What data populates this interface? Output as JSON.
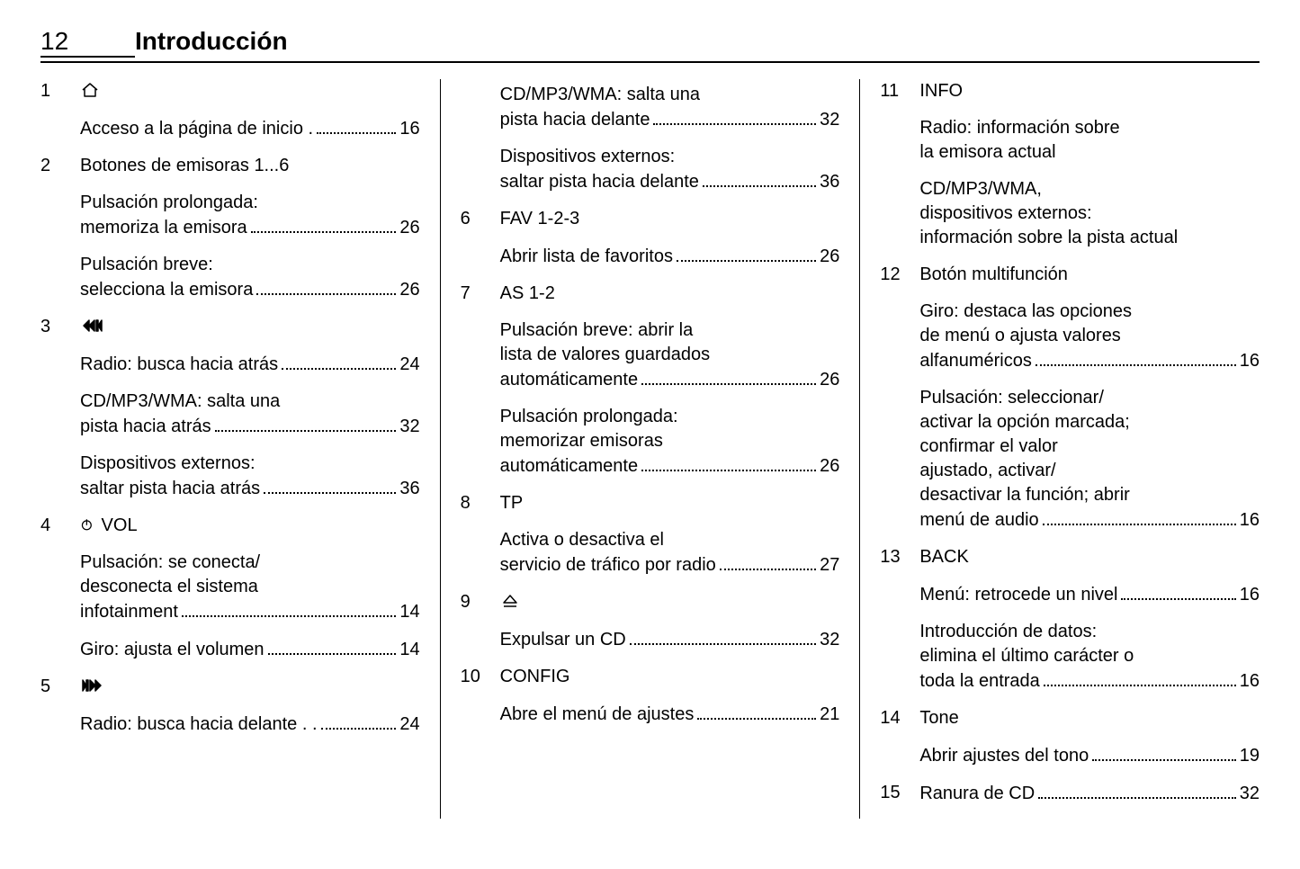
{
  "header": {
    "page_number": "12",
    "title": "Introducción"
  },
  "columns": [
    [
      {
        "num": "1",
        "label_icon": "home-icon",
        "subs": [
          {
            "text": "Acceso a la página de inicio .",
            "page": "16"
          }
        ]
      },
      {
        "num": "2",
        "label": "Botones de emisoras 1...6",
        "subs": [
          {
            "text_lines": [
              "Pulsación prolongada:",
              "memoriza la emisora"
            ],
            "page": "26"
          },
          {
            "text_lines": [
              "Pulsación breve:",
              "selecciona la emisora"
            ],
            "page": "26"
          }
        ]
      },
      {
        "num": "3",
        "label_icon": "rewind-prev-icon",
        "subs": [
          {
            "text": "Radio: busca hacia atrás",
            "page": "24"
          },
          {
            "text_lines": [
              "CD/MP3/WMA: salta una",
              "pista hacia atrás"
            ],
            "page": "32"
          },
          {
            "text_lines": [
              "Dispositivos externos:",
              "saltar pista hacia atrás"
            ],
            "page": "36"
          }
        ]
      },
      {
        "num": "4",
        "label_icon": "power-icon",
        "label_after": " VOL",
        "subs": [
          {
            "text_lines": [
              "Pulsación: se conecta/",
              "desconecta el sistema",
              "infotainment"
            ],
            "page": "14"
          },
          {
            "text": "Giro: ajusta el volumen",
            "page": "14"
          }
        ]
      },
      {
        "num": "5",
        "label_icon": "next-ff-icon",
        "subs": [
          {
            "text": "Radio: busca hacia delante . .",
            "page": "24"
          }
        ]
      }
    ],
    [
      {
        "continuation": true,
        "subs": [
          {
            "text_lines": [
              "CD/MP3/WMA: salta una",
              "pista hacia delante"
            ],
            "page": "32"
          },
          {
            "text_lines": [
              "Dispositivos externos:",
              "saltar pista hacia delante"
            ],
            "page": "36"
          }
        ]
      },
      {
        "num": "6",
        "label": "FAV 1-2-3",
        "subs": [
          {
            "text": "Abrir lista de favoritos",
            "page": "26"
          }
        ]
      },
      {
        "num": "7",
        "label": "AS 1-2",
        "subs": [
          {
            "text_lines": [
              "Pulsación breve: abrir la",
              "lista de valores guardados",
              "automáticamente"
            ],
            "page": "26"
          },
          {
            "text_lines": [
              "Pulsación prolongada:",
              "memorizar emisoras",
              "automáticamente"
            ],
            "page": "26"
          }
        ]
      },
      {
        "num": "8",
        "label": "TP",
        "subs": [
          {
            "text_lines": [
              "Activa o desactiva el",
              "servicio de tráfico por radio"
            ],
            "page": "27"
          }
        ]
      },
      {
        "num": "9",
        "label_icon": "eject-icon",
        "subs": [
          {
            "text": "Expulsar un CD",
            "page": "32"
          }
        ]
      },
      {
        "num": "10",
        "label": "CONFIG",
        "subs": [
          {
            "text": "Abre el menú de ajustes",
            "page": "21"
          }
        ]
      }
    ],
    [
      {
        "num": "11",
        "label": "INFO",
        "subs": [
          {
            "text_lines": [
              "Radio: información sobre",
              "la emisora actual"
            ]
          },
          {
            "text_lines": [
              "CD/MP3/WMA,",
              "dispositivos externos:",
              "información sobre la pista actual"
            ]
          }
        ]
      },
      {
        "num": "12",
        "label": "Botón multifunción",
        "subs": [
          {
            "text_lines": [
              "Giro: destaca las opciones",
              "de menú o ajusta valores",
              "alfanuméricos "
            ],
            "page": "16"
          },
          {
            "text_lines": [
              "Pulsación: seleccionar/",
              "activar la opción marcada;",
              "confirmar el valor",
              "ajustado, activar/",
              "desactivar la función; abrir",
              "menú de audio"
            ],
            "page": "16"
          }
        ]
      },
      {
        "num": "13",
        "label": "BACK",
        "subs": [
          {
            "text": "Menú: retrocede un nivel",
            "page": "16"
          },
          {
            "text_lines": [
              "Introducción de datos:",
              "elimina el último carácter o",
              "toda la entrada"
            ],
            "page": "16"
          }
        ]
      },
      {
        "num": "14",
        "label": "Tone",
        "subs": [
          {
            "text": "Abrir ajustes del tono",
            "page": "19"
          }
        ]
      },
      {
        "num": "15",
        "label": "Ranura de CD",
        "label_page": "32",
        "subs": []
      }
    ]
  ]
}
